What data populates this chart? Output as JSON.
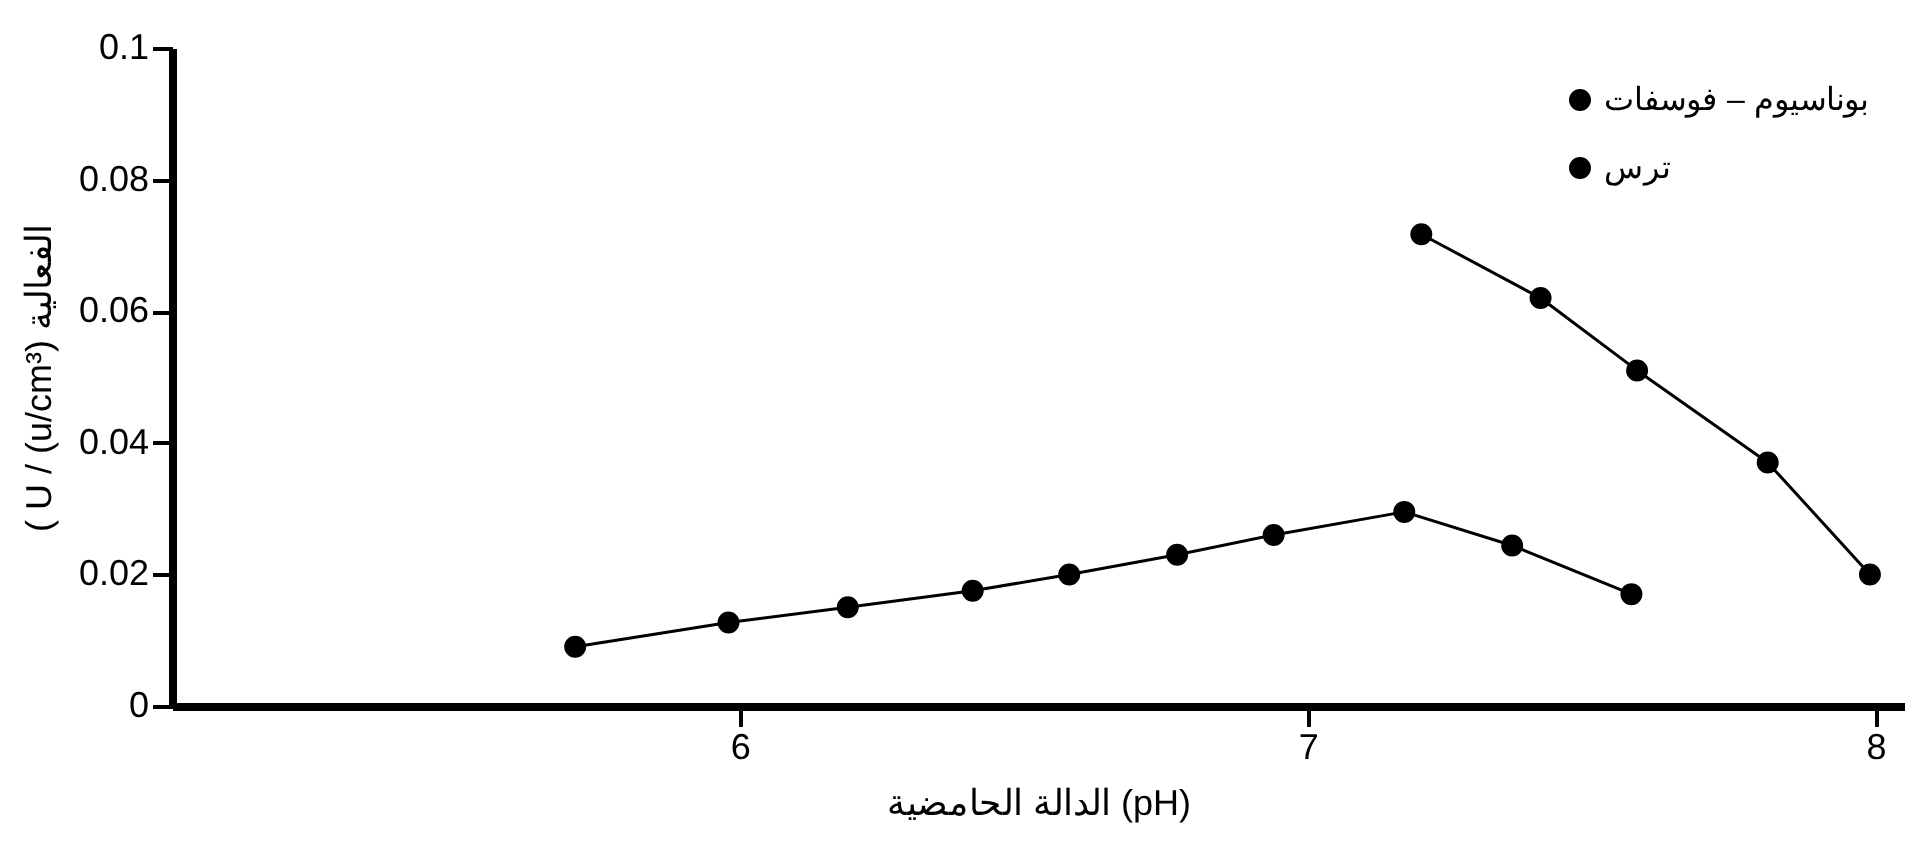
{
  "chart_data": {
    "type": "line",
    "xlabel": "الدالة الحامضية (pH)",
    "ylabel": "( U / (u/cm³) الفعالية",
    "xlim": [
      5.0,
      8.05
    ],
    "xticks": [
      6,
      7,
      8
    ],
    "ylim": [
      0,
      0.1
    ],
    "yticks": [
      0,
      0.02,
      0.04,
      0.06,
      0.08,
      0.1
    ],
    "grid": false,
    "legend": "top right",
    "marker": "circle",
    "line_style": "solid",
    "series": [
      {
        "name": "بوناسيوم – فوسفات",
        "color": "#000000",
        "x": [
          5.71,
          5.98,
          6.19,
          6.41,
          6.58,
          6.77,
          6.94,
          7.17,
          7.36,
          7.57
        ],
        "values": [
          0.009,
          0.0127,
          0.015,
          0.0175,
          0.02,
          0.023,
          0.026,
          0.0295,
          0.0244,
          0.017
        ]
      },
      {
        "name": "ترس",
        "color": "#000000",
        "x": [
          7.2,
          7.41,
          7.58,
          7.81,
          7.99
        ],
        "values": [
          0.0717,
          0.062,
          0.051,
          0.037,
          0.02
        ]
      }
    ]
  }
}
